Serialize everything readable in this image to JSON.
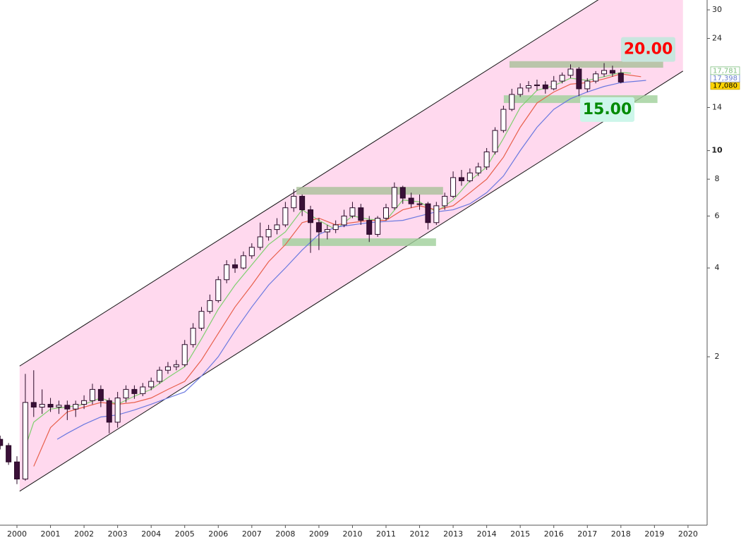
{
  "chart_data": {
    "type": "candlestick",
    "log_scale": true,
    "grid": false,
    "xlim": [
      1999.495,
      2020.57
    ],
    "xticks": [
      2000,
      2001,
      2002,
      2003,
      2004,
      2005,
      2006,
      2007,
      2008,
      2009,
      2010,
      2011,
      2012,
      2013,
      2014,
      2015,
      2016,
      2017,
      2018,
      2019,
      2020
    ],
    "ylim": [
      0.537,
      32.4
    ],
    "yticks": [
      2,
      4,
      6,
      8,
      10,
      14,
      24,
      30
    ],
    "up_color": "#ffffff",
    "down_color": "#3a1038",
    "wick_color": "#2a0a28",
    "x": [
      1999.5,
      1999.75,
      2000,
      2000.25,
      2000.5,
      2000.75,
      2001,
      2001.25,
      2001.5,
      2001.75,
      2002,
      2002.25,
      2002.5,
      2002.75,
      2003,
      2003.25,
      2003.5,
      2003.75,
      2004,
      2004.25,
      2004.5,
      2004.75,
      2005,
      2005.25,
      2005.5,
      2005.75,
      2006,
      2006.25,
      2006.5,
      2006.75,
      2007,
      2007.25,
      2007.5,
      2007.75,
      2008,
      2008.25,
      2008.5,
      2008.75,
      2009,
      2009.25,
      2009.5,
      2009.75,
      2010,
      2010.25,
      2010.5,
      2010.75,
      2011,
      2011.25,
      2011.5,
      2011.75,
      2012,
      2012.25,
      2012.5,
      2012.75,
      2013,
      2013.25,
      2013.5,
      2013.75,
      2014,
      2014.25,
      2014.5,
      2014.75,
      2015,
      2015.25,
      2015.5,
      2015.75,
      2016,
      2016.25,
      2016.5,
      2016.75,
      2017,
      2017.25,
      2017.5,
      2017.75,
      2018
    ],
    "open": [
      1.05,
      1.0,
      0.88,
      0.77,
      1.4,
      1.35,
      1.38,
      1.35,
      1.37,
      1.33,
      1.38,
      1.42,
      1.55,
      1.42,
      1.2,
      1.45,
      1.55,
      1.5,
      1.58,
      1.65,
      1.8,
      1.85,
      1.88,
      2.2,
      2.5,
      2.85,
      3.1,
      3.65,
      4.1,
      4.0,
      4.4,
      4.7,
      5.1,
      5.4,
      5.6,
      6.4,
      7.0,
      6.3,
      5.7,
      5.3,
      5.4,
      5.6,
      6.0,
      6.4,
      5.8,
      5.2,
      5.9,
      6.4,
      7.5,
      6.9,
      6.6,
      6.6,
      5.7,
      6.5,
      7.0,
      8.1,
      7.9,
      8.4,
      8.8,
      9.9,
      11.7,
      13.8,
      15.5,
      16.3,
      16.6,
      16.7,
      16.2,
      17.2,
      18.0,
      18.9,
      16.2,
      17.2,
      18.2,
      18.7,
      18.3
    ],
    "high": [
      1.08,
      1.02,
      0.92,
      1.75,
      1.8,
      1.55,
      1.45,
      1.42,
      1.42,
      1.42,
      1.48,
      1.62,
      1.6,
      1.45,
      1.52,
      1.6,
      1.6,
      1.63,
      1.7,
      1.85,
      1.92,
      1.95,
      2.28,
      2.6,
      2.95,
      3.25,
      3.75,
      4.25,
      4.3,
      4.55,
      4.85,
      5.7,
      5.6,
      5.9,
      6.7,
      7.4,
      7.1,
      6.5,
      5.9,
      5.6,
      5.8,
      6.3,
      6.7,
      6.6,
      6.0,
      6.0,
      6.6,
      7.8,
      7.6,
      7.2,
      7.1,
      6.7,
      6.7,
      7.2,
      8.5,
      8.6,
      8.7,
      9.1,
      10.2,
      12.0,
      14.2,
      16.2,
      16.9,
      17.2,
      17.4,
      17.2,
      17.9,
      18.4,
      19.6,
      19.2,
      17.6,
      18.6,
      19.8,
      19.4,
      18.9
    ],
    "low": [
      0.97,
      0.86,
      0.74,
      0.76,
      1.25,
      1.28,
      1.3,
      1.28,
      1.22,
      1.25,
      1.33,
      1.38,
      1.35,
      1.1,
      1.15,
      1.4,
      1.44,
      1.47,
      1.54,
      1.62,
      1.75,
      1.8,
      1.85,
      2.15,
      2.45,
      2.8,
      3.05,
      3.55,
      3.85,
      3.95,
      4.3,
      4.6,
      4.95,
      5.2,
      5.5,
      6.2,
      6.0,
      4.5,
      4.6,
      5.0,
      5.25,
      5.5,
      5.9,
      5.6,
      4.9,
      5.1,
      5.8,
      6.3,
      6.6,
      6.4,
      6.3,
      5.4,
      5.6,
      6.3,
      6.9,
      7.6,
      7.8,
      8.2,
      8.6,
      9.7,
      11.5,
      13.6,
      15.2,
      15.8,
      16.0,
      15.6,
      16.0,
      16.9,
      17.6,
      15.3,
      15.8,
      16.9,
      17.8,
      17.8,
      16.9
    ],
    "close": [
      1.0,
      0.88,
      0.77,
      1.4,
      1.35,
      1.38,
      1.35,
      1.37,
      1.33,
      1.38,
      1.42,
      1.55,
      1.42,
      1.2,
      1.45,
      1.55,
      1.5,
      1.58,
      1.65,
      1.8,
      1.85,
      1.88,
      2.2,
      2.5,
      2.85,
      3.1,
      3.65,
      4.1,
      4.0,
      4.4,
      4.7,
      5.1,
      5.4,
      5.6,
      6.4,
      7.0,
      6.3,
      5.7,
      5.3,
      5.4,
      5.6,
      6.0,
      6.4,
      5.8,
      5.2,
      5.9,
      6.4,
      7.5,
      6.9,
      6.6,
      6.6,
      5.7,
      6.5,
      7.0,
      8.1,
      7.9,
      8.4,
      8.8,
      9.9,
      11.7,
      13.8,
      15.5,
      16.3,
      16.6,
      16.7,
      16.2,
      17.2,
      18.0,
      18.9,
      16.2,
      17.2,
      18.2,
      18.7,
      18.3,
      17.08
    ],
    "lines": [
      {
        "color": "#7fcf6f",
        "x": [
          2000.2,
          2000.5,
          2001,
          2001.5,
          2002,
          2002.5,
          2003,
          2003.5,
          2004,
          2004.5,
          2005,
          2005.5,
          2006,
          2006.5,
          2007,
          2007.5,
          2008,
          2008.5,
          2009,
          2009.5,
          2010,
          2010.5,
          2011,
          2011.5,
          2012,
          2012.5,
          2013,
          2013.5,
          2014,
          2014.5,
          2015,
          2015.5,
          2016,
          2016.5,
          2017,
          2017.5,
          2018,
          2018.3
        ],
        "values": [
          0.95,
          1.2,
          1.33,
          1.35,
          1.38,
          1.45,
          1.38,
          1.47,
          1.55,
          1.7,
          1.85,
          2.3,
          2.9,
          3.5,
          4.1,
          4.8,
          5.3,
          6.3,
          5.8,
          5.4,
          6.0,
          5.85,
          5.8,
          6.8,
          6.7,
          6.2,
          6.8,
          7.9,
          8.8,
          11.0,
          14.0,
          16.0,
          16.6,
          17.6,
          17.3,
          17.8,
          18.4,
          18.3
        ]
      },
      {
        "color": "#e8604c",
        "x": [
          2000.5,
          2001,
          2001.5,
          2002,
          2002.5,
          2003,
          2003.5,
          2004,
          2004.5,
          2005,
          2005.5,
          2006,
          2006.5,
          2007,
          2007.5,
          2008,
          2008.5,
          2009,
          2009.5,
          2010,
          2010.5,
          2011,
          2011.5,
          2012,
          2012.5,
          2013,
          2013.5,
          2014,
          2014.5,
          2015,
          2015.5,
          2016,
          2016.5,
          2017,
          2017.5,
          2018,
          2018.6
        ],
        "values": [
          0.85,
          1.15,
          1.3,
          1.35,
          1.4,
          1.38,
          1.4,
          1.45,
          1.55,
          1.65,
          1.95,
          2.4,
          2.95,
          3.5,
          4.2,
          4.8,
          5.7,
          5.9,
          5.6,
          5.7,
          5.8,
          5.8,
          6.3,
          6.5,
          6.3,
          6.5,
          7.2,
          8.0,
          9.5,
          12.0,
          14.5,
          15.8,
          16.8,
          17.0,
          17.5,
          18.2,
          17.8
        ]
      },
      {
        "color": "#6a78e0",
        "x": [
          2001.2,
          2001.5,
          2002,
          2002.5,
          2003,
          2003.5,
          2004,
          2004.5,
          2005,
          2005.5,
          2006,
          2006.5,
          2007,
          2007.5,
          2008,
          2008.5,
          2009,
          2009.5,
          2010,
          2010.5,
          2011,
          2011.5,
          2012,
          2012.5,
          2013,
          2013.5,
          2014,
          2014.5,
          2015,
          2015.5,
          2016,
          2016.5,
          2017,
          2017.5,
          2018,
          2018.75
        ],
        "values": [
          1.05,
          1.1,
          1.18,
          1.25,
          1.27,
          1.32,
          1.38,
          1.45,
          1.52,
          1.72,
          2.0,
          2.45,
          2.95,
          3.5,
          4.0,
          4.6,
          5.2,
          5.5,
          5.6,
          5.7,
          5.75,
          5.8,
          6.0,
          6.2,
          6.3,
          6.6,
          7.2,
          8.2,
          10.0,
          12.0,
          13.8,
          15.0,
          15.8,
          16.5,
          17.0,
          17.3
        ]
      }
    ],
    "channel": {
      "color": "#ffd9ee",
      "line_color": "#111111",
      "x": [
        2000.08,
        2019.85
      ],
      "lower": [
        0.7,
        18.6
      ],
      "upper": [
        1.86,
        49.3
      ]
    },
    "zones": [
      {
        "color": "#a9bf98",
        "x": [
          2014.68,
          2019.26
        ],
        "y": [
          19.1,
          20.1
        ]
      },
      {
        "color": "#9fd09a",
        "x": [
          2014.51,
          2019.09
        ],
        "y": [
          14.5,
          15.4
        ]
      },
      {
        "color": "#a9bf98",
        "x": [
          2008.33,
          2012.7
        ],
        "y": [
          7.09,
          7.53
        ]
      },
      {
        "color": "#9fd09a",
        "x": [
          2007.91,
          2012.49
        ],
        "y": [
          4.75,
          5.04
        ]
      }
    ],
    "price_labels": [
      {
        "value": 20,
        "label": "20.00",
        "color": "#ff0000",
        "background": "#c9e6df"
      },
      {
        "value": 15,
        "label": "15.00",
        "color": "#008a00",
        "background": "#cdf6ea"
      }
    ],
    "price_tags": [
      {
        "value": 17.781,
        "label": "17,781",
        "color": "#7fbf7f",
        "background": "#ffffff"
      },
      {
        "value": 17.398,
        "label": "17,398",
        "color": "#6a7fd0",
        "background": "#ffffff"
      },
      {
        "value": 17.08,
        "label": "17,080",
        "color": "#000000",
        "background": "#ffd400"
      }
    ]
  }
}
